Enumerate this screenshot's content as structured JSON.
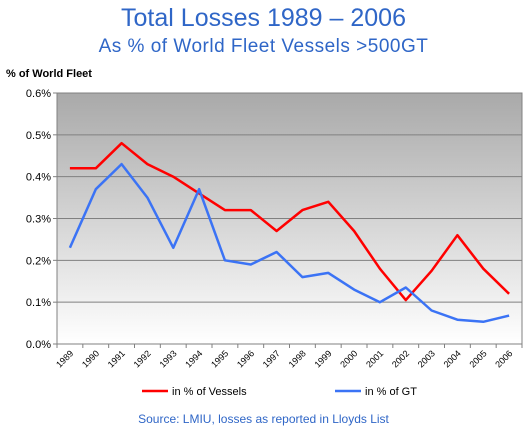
{
  "header": {
    "title": "Total Losses 1989 – 2006",
    "subtitle": "As % of World Fleet Vessels >500GT"
  },
  "footer": {
    "source": "Source: LMIU, losses as reported in Lloyds List"
  },
  "chart_data": {
    "type": "line",
    "ylabel": "% of World Fleet",
    "x": [
      "1989",
      "1990",
      "1991",
      "1992",
      "1993",
      "1994",
      "1995",
      "1996",
      "1997",
      "1998",
      "1999",
      "2000",
      "2001",
      "2002",
      "2003",
      "2004",
      "2005",
      "2006"
    ],
    "ylim": [
      0,
      0.6
    ],
    "yticks": [
      "0.0%",
      "0.1%",
      "0.2%",
      "0.3%",
      "0.4%",
      "0.5%",
      "0.6%"
    ],
    "grid": true,
    "legend_position": "bottom",
    "series": [
      {
        "name": "in % of Vessels",
        "color": "#ff0000",
        "values": [
          0.42,
          0.42,
          0.48,
          0.43,
          0.4,
          0.36,
          0.32,
          0.32,
          0.27,
          0.32,
          0.34,
          0.27,
          0.18,
          0.105,
          0.175,
          0.26,
          0.18,
          0.12
        ]
      },
      {
        "name": "in % of GT",
        "color": "#3b73f5",
        "values": [
          0.23,
          0.37,
          0.43,
          0.35,
          0.23,
          0.37,
          0.2,
          0.19,
          0.22,
          0.16,
          0.17,
          0.13,
          0.1,
          0.135,
          0.08,
          0.058,
          0.053,
          0.068
        ]
      }
    ]
  }
}
